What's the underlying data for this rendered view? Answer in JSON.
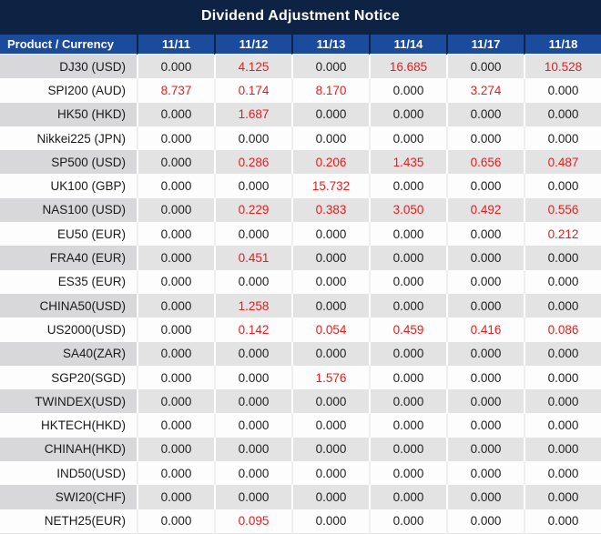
{
  "chart_data": {
    "type": "table",
    "title": "Dividend Adjustment Notice",
    "columns": [
      "Product / Currency",
      "11/11",
      "11/12",
      "11/13",
      "11/14",
      "11/17",
      "11/18"
    ],
    "rows": [
      {
        "product": "DJ30 (USD)",
        "values": [
          "0.000",
          "4.125",
          "0.000",
          "16.685",
          "0.000",
          "10.528"
        ]
      },
      {
        "product": "SPI200 (AUD)",
        "values": [
          "8.737",
          "0.174",
          "8.170",
          "0.000",
          "3.274",
          "0.000"
        ]
      },
      {
        "product": "HK50 (HKD)",
        "values": [
          "0.000",
          "1.687",
          "0.000",
          "0.000",
          "0.000",
          "0.000"
        ]
      },
      {
        "product": "Nikkei225 (JPN)",
        "values": [
          "0.000",
          "0.000",
          "0.000",
          "0.000",
          "0.000",
          "0.000"
        ]
      },
      {
        "product": "SP500 (USD)",
        "values": [
          "0.000",
          "0.286",
          "0.206",
          "1.435",
          "0.656",
          "0.487"
        ]
      },
      {
        "product": "UK100 (GBP)",
        "values": [
          "0.000",
          "0.000",
          "15.732",
          "0.000",
          "0.000",
          "0.000"
        ]
      },
      {
        "product": "NAS100 (USD)",
        "values": [
          "0.000",
          "0.229",
          "0.383",
          "3.050",
          "0.492",
          "0.556"
        ]
      },
      {
        "product": "EU50 (EUR)",
        "values": [
          "0.000",
          "0.000",
          "0.000",
          "0.000",
          "0.000",
          "0.212"
        ]
      },
      {
        "product": "FRA40 (EUR)",
        "values": [
          "0.000",
          "0.451",
          "0.000",
          "0.000",
          "0.000",
          "0.000"
        ]
      },
      {
        "product": "ES35 (EUR)",
        "values": [
          "0.000",
          "0.000",
          "0.000",
          "0.000",
          "0.000",
          "0.000"
        ]
      },
      {
        "product": "CHINA50(USD)",
        "values": [
          "0.000",
          "1.258",
          "0.000",
          "0.000",
          "0.000",
          "0.000"
        ]
      },
      {
        "product": "US2000(USD)",
        "values": [
          "0.000",
          "0.142",
          "0.054",
          "0.459",
          "0.416",
          "0.086"
        ]
      },
      {
        "product": "SA40(ZAR)",
        "values": [
          "0.000",
          "0.000",
          "0.000",
          "0.000",
          "0.000",
          "0.000"
        ]
      },
      {
        "product": "SGP20(SGD)",
        "values": [
          "0.000",
          "0.000",
          "1.576",
          "0.000",
          "0.000",
          "0.000"
        ]
      },
      {
        "product": "TWINDEX(USD)",
        "values": [
          "0.000",
          "0.000",
          "0.000",
          "0.000",
          "0.000",
          "0.000"
        ]
      },
      {
        "product": "HKTECH(HKD)",
        "values": [
          "0.000",
          "0.000",
          "0.000",
          "0.000",
          "0.000",
          "0.000"
        ]
      },
      {
        "product": "CHINAH(HKD)",
        "values": [
          "0.000",
          "0.000",
          "0.000",
          "0.000",
          "0.000",
          "0.000"
        ]
      },
      {
        "product": "IND50(USD)",
        "values": [
          "0.000",
          "0.000",
          "0.000",
          "0.000",
          "0.000",
          "0.000"
        ]
      },
      {
        "product": "SWI20(CHF)",
        "values": [
          "0.000",
          "0.000",
          "0.000",
          "0.000",
          "0.000",
          "0.000"
        ]
      },
      {
        "product": "NETH25(EUR)",
        "values": [
          "0.000",
          "0.095",
          "0.000",
          "0.000",
          "0.000",
          "0.000"
        ]
      }
    ],
    "highlight_rule": "non-zero values are shown in red",
    "colors": {
      "title_bg": "#0e2343",
      "header_bg": "#1a4b9d",
      "header_text": "#ffffff",
      "odd_row_product_bg": "#d8d8da",
      "odd_row_value_bg": "#e3e3e4",
      "even_row_bg": "#fdfdfd",
      "value_text": "#222222",
      "nonzero_value_text": "#e01f1f"
    }
  }
}
